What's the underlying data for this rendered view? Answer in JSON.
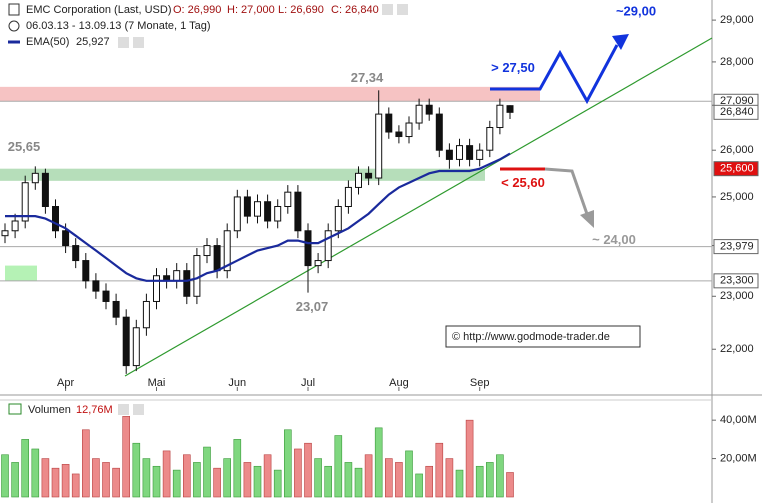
{
  "header": {
    "title": "EMC Corporation (Last, USD)",
    "open": "O: 26,990",
    "high": "H: 27,000",
    "low": "L: 26,690",
    "close": "C: 26,840",
    "period": "06.03.13 - 13.09.13 (7 Monate, 1 Tag)"
  },
  "copyright": "© http://www.godmode-trader.de",
  "chart_data": {
    "type": "candlestick",
    "log": true,
    "categories": [
      null,
      null,
      null,
      null,
      null,
      null,
      "Apr",
      null,
      null,
      null,
      null,
      null,
      null,
      null,
      null,
      "Mai",
      null,
      null,
      null,
      null,
      null,
      null,
      null,
      "Jun",
      null,
      null,
      null,
      null,
      null,
      null,
      "Jul",
      null,
      null,
      null,
      null,
      null,
      null,
      null,
      null,
      "Aug",
      null,
      null,
      null,
      null,
      null,
      null,
      null,
      "Sep",
      null,
      null,
      null
    ],
    "open": [
      24.2,
      24.3,
      24.5,
      25.3,
      25.5,
      24.8,
      24.3,
      24.0,
      23.7,
      23.3,
      23.1,
      22.9,
      22.6,
      21.7,
      22.4,
      22.9,
      23.4,
      23.3,
      23.5,
      23.0,
      23.8,
      24.0,
      23.5,
      24.3,
      25.0,
      24.6,
      24.9,
      24.5,
      24.8,
      25.1,
      24.3,
      23.6,
      23.7,
      24.3,
      24.8,
      25.2,
      25.5,
      25.4,
      26.8,
      26.4,
      26.3,
      26.6,
      27.0,
      26.8,
      26.0,
      25.8,
      26.1,
      25.8,
      26.0,
      26.5,
      26.99
    ],
    "high": [
      24.45,
      24.65,
      25.45,
      25.65,
      25.6,
      24.95,
      24.45,
      24.15,
      23.85,
      23.45,
      23.25,
      23.05,
      22.75,
      22.55,
      23.05,
      23.55,
      23.55,
      23.65,
      23.65,
      23.95,
      24.15,
      24.15,
      24.45,
      25.15,
      25.15,
      25.05,
      25.05,
      24.95,
      25.25,
      25.25,
      24.45,
      23.85,
      24.45,
      24.95,
      25.35,
      25.65,
      25.65,
      27.34,
      26.95,
      26.55,
      26.75,
      27.15,
      27.15,
      26.95,
      26.15,
      26.25,
      26.25,
      26.15,
      26.65,
      27.15,
      27.0
    ],
    "low": [
      24.05,
      24.15,
      24.35,
      25.15,
      24.65,
      24.15,
      23.85,
      23.55,
      23.15,
      22.95,
      22.75,
      22.45,
      21.55,
      21.6,
      22.25,
      22.75,
      23.15,
      23.15,
      22.85,
      22.85,
      23.65,
      23.35,
      23.35,
      24.15,
      24.45,
      24.45,
      24.35,
      24.35,
      24.65,
      24.15,
      23.07,
      23.45,
      23.55,
      24.15,
      24.65,
      25.05,
      25.25,
      25.25,
      26.25,
      26.15,
      26.15,
      26.45,
      26.65,
      25.85,
      25.6,
      25.65,
      25.65,
      25.65,
      25.85,
      26.35,
      26.69
    ],
    "close": [
      24.3,
      24.5,
      25.3,
      25.5,
      24.8,
      24.3,
      24.0,
      23.7,
      23.3,
      23.1,
      22.9,
      22.6,
      21.7,
      22.4,
      22.9,
      23.4,
      23.3,
      23.5,
      23.0,
      23.8,
      24.0,
      23.5,
      24.3,
      25.0,
      24.6,
      24.9,
      24.5,
      24.8,
      25.1,
      24.3,
      23.6,
      23.7,
      24.3,
      24.8,
      25.2,
      25.5,
      25.4,
      26.8,
      26.4,
      26.3,
      26.6,
      27.0,
      26.8,
      26.0,
      25.8,
      26.1,
      25.8,
      26.0,
      26.5,
      27.0,
      26.84
    ],
    "series": [
      {
        "name": "EMA(50)",
        "value_label": "25,927",
        "color": "#1a2a9c",
        "values": [
          24.6,
          24.6,
          24.6,
          24.6,
          24.55,
          24.45,
          24.35,
          24.2,
          24.05,
          23.9,
          23.75,
          23.6,
          23.45,
          23.35,
          23.3,
          23.3,
          23.3,
          23.3,
          23.3,
          23.35,
          23.45,
          23.5,
          23.6,
          23.7,
          23.8,
          23.9,
          23.95,
          24.0,
          24.1,
          24.1,
          24.05,
          24.05,
          24.15,
          24.25,
          24.35,
          24.5,
          24.65,
          24.85,
          25.05,
          25.2,
          25.3,
          25.4,
          25.5,
          25.55,
          25.55,
          25.55,
          25.55,
          25.6,
          25.7,
          25.8,
          25.927
        ]
      }
    ],
    "ylim": [
      21.26,
      29.37
    ],
    "yticks": [
      {
        "value": 22,
        "label": "22,000"
      },
      {
        "value": 23,
        "label": "23,000"
      },
      {
        "value": 24,
        "label": "24,000"
      },
      {
        "value": 25,
        "label": "25,000"
      },
      {
        "value": 26,
        "label": "26,000"
      },
      {
        "value": 27,
        "label": "27,000"
      },
      {
        "value": 28,
        "label": "28,000"
      },
      {
        "value": 29,
        "label": "29,000"
      }
    ],
    "levels": [
      {
        "value": 27.09,
        "label": "27,090",
        "line": true
      },
      {
        "value": 26.84,
        "label": "26,840",
        "line": false
      },
      {
        "value": 25.6,
        "label": "25,600",
        "line": false
      },
      {
        "value": 23.979,
        "label": "23,979",
        "line": true
      },
      {
        "value": 23.3,
        "label": "23,300",
        "line": true
      }
    ],
    "zones": [
      {
        "from": 27.09,
        "to": 27.42,
        "color": "#f4b8b8"
      },
      {
        "from": 25.34,
        "to": 25.6,
        "color": "#a9d8ae"
      },
      {
        "from": 23.3,
        "to": 23.6,
        "color": "#a8f0a8"
      }
    ],
    "annotations": [
      {
        "value": 27.34,
        "label": "27,34"
      },
      {
        "value": 25.65,
        "label": "25,65"
      },
      {
        "value": 23.07,
        "label": "23,07"
      },
      {
        "value": 27.5,
        "label": "> 27,50"
      },
      {
        "value": 29,
        "label": "~29,00"
      },
      {
        "value": 25.6,
        "label": "< 25,60"
      },
      {
        "value": 24,
        "label": "~ 24,00"
      }
    ],
    "volume": {
      "name": "Volumen",
      "value_label": "12,76M",
      "ylim": [
        0,
        50.5
      ],
      "yticks": [
        {
          "value": 20,
          "label": "20,00M"
        },
        {
          "value": 40,
          "label": "40,00M"
        }
      ],
      "values": [
        22,
        18,
        30,
        25,
        20,
        15,
        17,
        12,
        35,
        20,
        18,
        15,
        42,
        28,
        20,
        16,
        24,
        14,
        22,
        18,
        26,
        15,
        20,
        30,
        18,
        16,
        22,
        14,
        35,
        25,
        28,
        20,
        16,
        32,
        18,
        15,
        22,
        36,
        20,
        18,
        24,
        12,
        16,
        28,
        20,
        14,
        40,
        16,
        18,
        22,
        12.76
      ]
    }
  }
}
